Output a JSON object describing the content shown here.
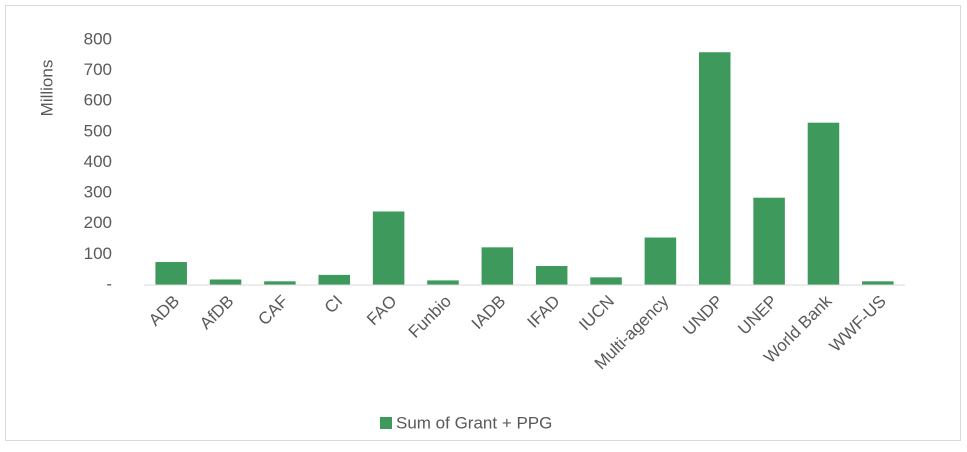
{
  "chart_data": {
    "type": "bar",
    "y_label": "Millions",
    "categories": [
      "ADB",
      "AfDB",
      "CAF",
      "CI",
      "FAO",
      "Funbio",
      "IADB",
      "IFAD",
      "IUCN",
      "Multi-agency",
      "UNDP",
      "UNEP",
      "World Bank",
      "WWF-US"
    ],
    "series": [
      {
        "name": "Sum of Grant + PPG",
        "color": "#3d9a5c",
        "values": [
          75,
          18,
          12,
          33,
          240,
          15,
          123,
          62,
          25,
          155,
          760,
          285,
          530,
          12
        ]
      }
    ],
    "ylim": [
      0,
      800
    ],
    "yticks": [
      {
        "value": 0,
        "label": "-"
      },
      100,
      200,
      300,
      400,
      500,
      600,
      700,
      800
    ],
    "grid": false,
    "legend": "bottom"
  }
}
